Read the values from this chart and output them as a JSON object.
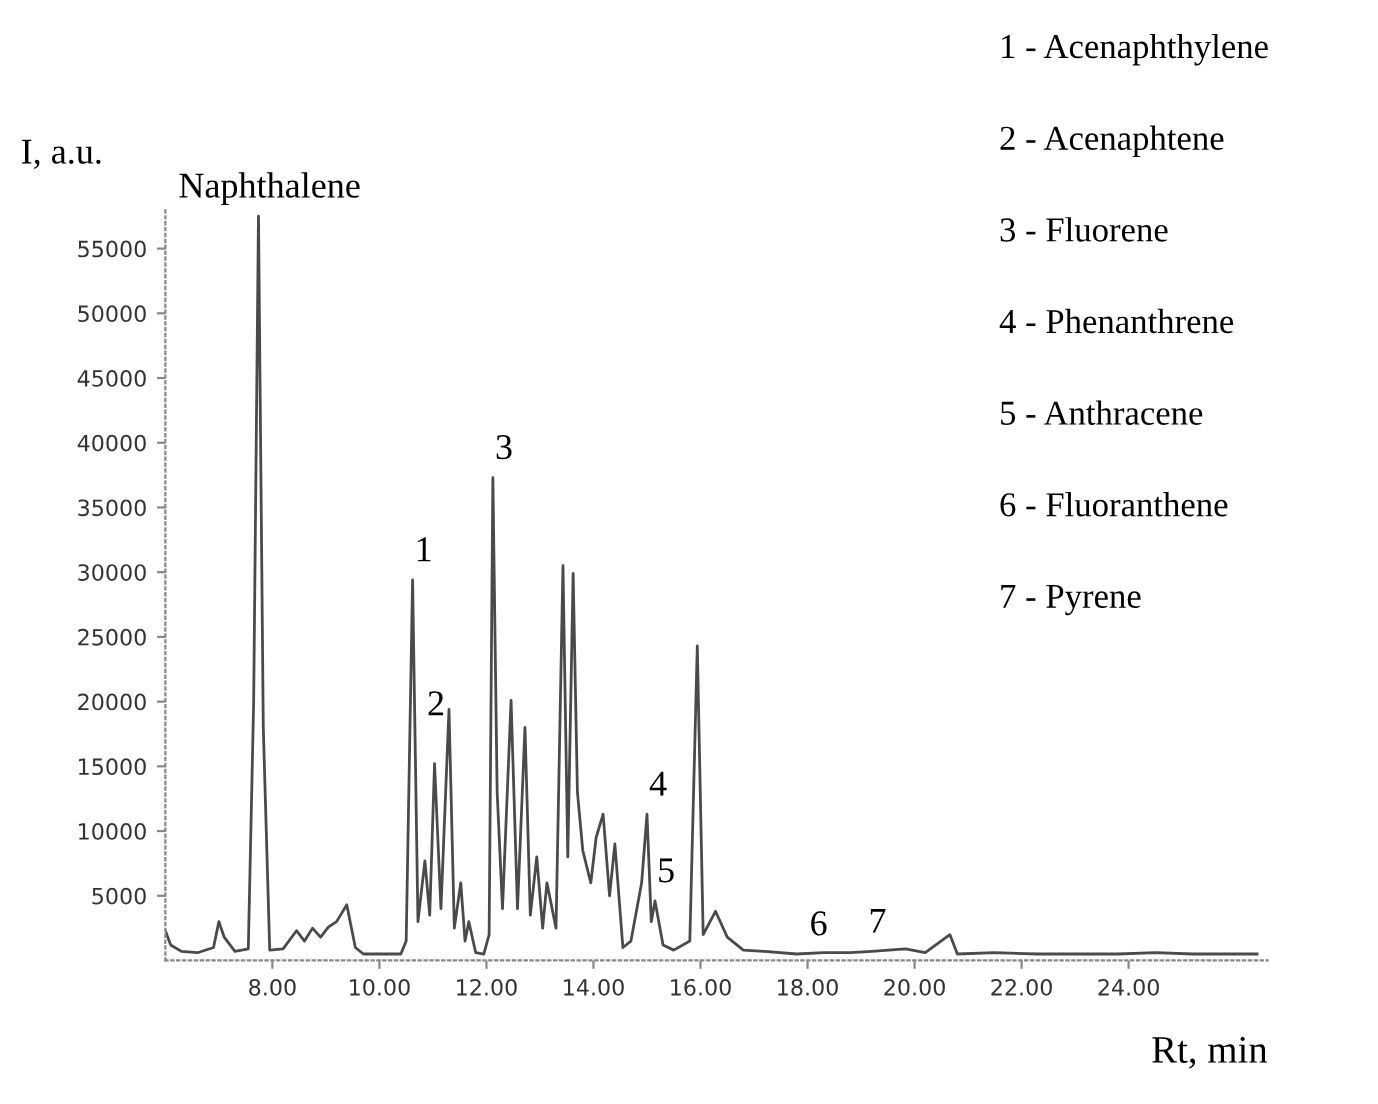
{
  "chart_data": {
    "type": "line",
    "xlabel": "Rt, min",
    "ylabel": "I, a.u.",
    "x": [
      6.0,
      6.1,
      6.3,
      6.6,
      6.9,
      7.0,
      7.1,
      7.3,
      7.55,
      7.65,
      7.74,
      7.83,
      7.95,
      8.2,
      8.45,
      8.6,
      8.75,
      8.9,
      9.05,
      9.2,
      9.39,
      9.55,
      9.7,
      10.0,
      10.4,
      10.5,
      10.62,
      10.72,
      10.85,
      10.94,
      11.03,
      11.15,
      11.3,
      11.4,
      11.52,
      11.6,
      11.67,
      11.8,
      11.95,
      12.05,
      12.12,
      12.2,
      12.3,
      12.46,
      12.58,
      12.72,
      12.82,
      12.94,
      13.05,
      13.13,
      13.3,
      13.43,
      13.52,
      13.62,
      13.7,
      13.8,
      13.95,
      14.05,
      14.18,
      14.3,
      14.4,
      14.55,
      14.7,
      14.9,
      15.0,
      15.08,
      15.15,
      15.3,
      15.5,
      15.8,
      15.94,
      16.05,
      16.28,
      16.5,
      16.8,
      17.2,
      17.8,
      18.3,
      18.8,
      19.2,
      19.83,
      20.2,
      20.66,
      20.8,
      21.5,
      22.3,
      23.0,
      23.8,
      24.5,
      25.2,
      25.8,
      26.4
    ],
    "series": [
      {
        "color": "#4a4a4a",
        "values": [
          2300,
          1200,
          700,
          600,
          1000,
          3000,
          1800,
          700,
          900,
          20000,
          57500,
          18000,
          800,
          900,
          2300,
          1500,
          2500,
          1800,
          2600,
          3000,
          4300,
          1000,
          500,
          500,
          500,
          1500,
          29400,
          3000,
          7700,
          3500,
          15200,
          4000,
          19400,
          2500,
          6000,
          1500,
          3000,
          600,
          500,
          2000,
          37300,
          13000,
          4000,
          20100,
          4000,
          18000,
          3500,
          8000,
          2500,
          6000,
          2500,
          30500,
          8000,
          29900,
          13000,
          8500,
          6000,
          9500,
          11300,
          5000,
          9000,
          1000,
          1500,
          6000,
          11300,
          3000,
          4600,
          1200,
          800,
          1500,
          24300,
          2000,
          3800,
          1800,
          800,
          700,
          500,
          600,
          600,
          700,
          900,
          600,
          2000,
          500,
          600,
          500,
          500,
          500,
          600,
          500,
          500,
          500
        ]
      }
    ],
    "xlim": [
      6.0,
      26.6
    ],
    "ylim": [
      0,
      58000
    ],
    "xticks": [
      {
        "value": 8,
        "label": "8.00"
      },
      {
        "value": 10,
        "label": "10.00"
      },
      {
        "value": 12,
        "label": "12.00"
      },
      {
        "value": 14,
        "label": "14.00"
      },
      {
        "value": 16,
        "label": "16.00"
      },
      {
        "value": 18,
        "label": "18.00"
      },
      {
        "value": 20,
        "label": "20.00"
      },
      {
        "value": 22,
        "label": "22.00"
      },
      {
        "value": 24,
        "label": "24.00"
      }
    ],
    "yticks": [
      5000,
      10000,
      15000,
      20000,
      25000,
      30000,
      35000,
      40000,
      45000,
      50000,
      55000
    ],
    "annotations": [
      {
        "text": "Naphthalene",
        "x": 7.74,
        "y": 57500
      },
      {
        "text": "1",
        "x": 10.62,
        "y": 29400
      },
      {
        "text": "2",
        "x": 10.85,
        "y": 17500
      },
      {
        "text": "3",
        "x": 12.12,
        "y": 37300
      },
      {
        "text": "4",
        "x": 15.0,
        "y": 11300
      },
      {
        "text": "5",
        "x": 15.15,
        "y": 4600
      },
      {
        "text": "6",
        "x": 18.0,
        "y": 500
      },
      {
        "text": "7",
        "x": 19.1,
        "y": 700
      },
      "1 - Acenaphthylene",
      "2 - Acenaphtene",
      "3 - Fluorene",
      "4 - Phenanthrene",
      "5 - Anthracene",
      "6 - Fluoranthene",
      "7 - Pyrene"
    ]
  }
}
